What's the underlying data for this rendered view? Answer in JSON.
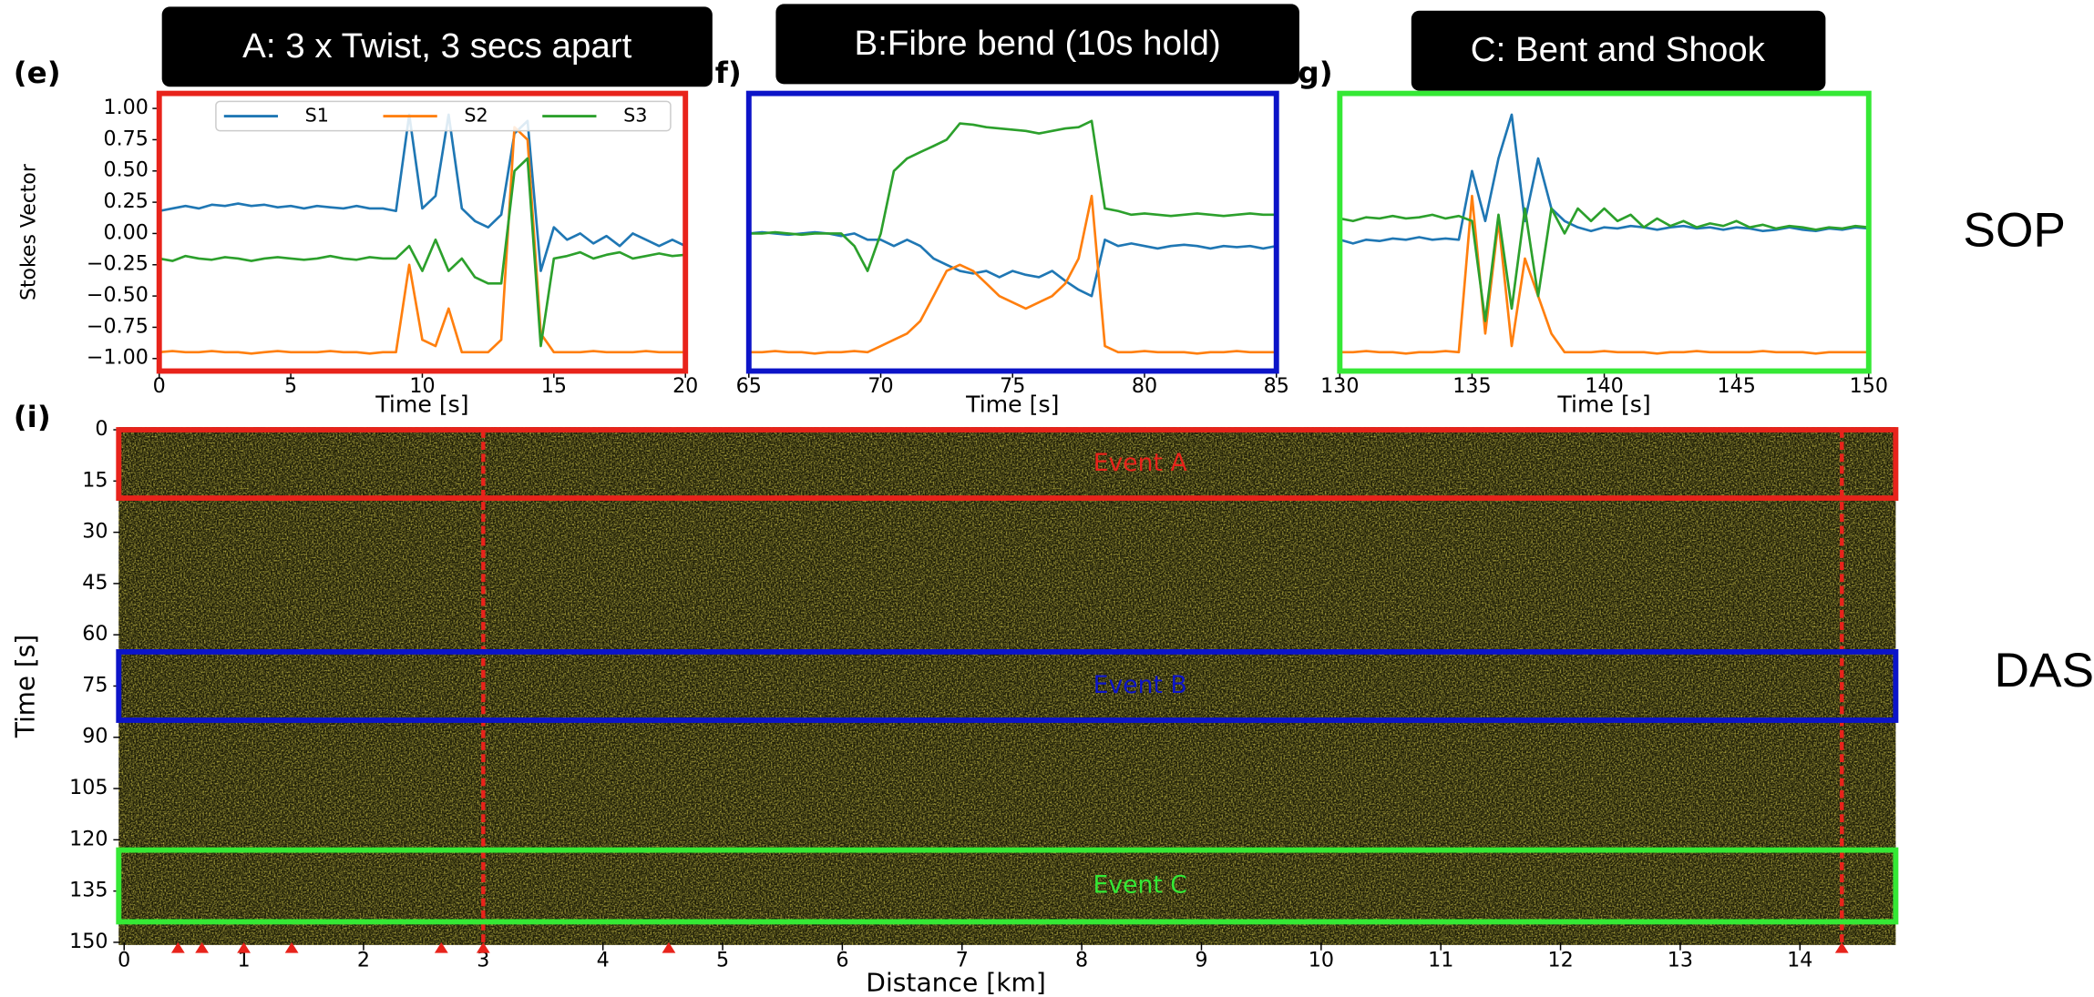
{
  "headers": [
    "A: 3 x Twist, 3 secs apart",
    "B:Fibre bend (10s hold)",
    "C: Bent and Shook"
  ],
  "side_labels": [
    "SOP",
    "DAS"
  ],
  "chart_data": [
    {
      "type": "line",
      "panel_label": "(e)",
      "xlabel": "Time [s]",
      "ylabel": "Stokes Vector",
      "frame_color": "#e8231b",
      "legend": "upper center",
      "x": [
        0,
        0.5,
        1,
        1.5,
        2,
        2.5,
        3,
        3.5,
        4,
        4.5,
        5,
        5.5,
        6,
        6.5,
        7,
        7.5,
        8,
        8.5,
        9,
        9.5,
        10,
        10.5,
        11,
        11.5,
        12,
        12.5,
        13,
        13.5,
        14,
        14.5,
        15,
        15.5,
        16,
        16.5,
        17,
        17.5,
        18,
        18.5,
        19,
        19.5,
        20
      ],
      "xlim": [
        0,
        20
      ],
      "xticks": [
        0,
        5,
        10,
        15,
        20
      ],
      "ylim": [
        -1.1,
        1.12
      ],
      "yticks": [
        {
          "value": -1,
          "label": "−1.00"
        },
        {
          "value": -0.75,
          "label": "−0.75"
        },
        {
          "value": -0.5,
          "label": "−0.50"
        },
        {
          "value": -0.25,
          "label": "−0.25"
        },
        {
          "value": 0,
          "label": "0.00"
        },
        {
          "value": 0.25,
          "label": "0.25"
        },
        {
          "value": 0.5,
          "label": "0.50"
        },
        {
          "value": 0.75,
          "label": "0.75"
        },
        {
          "value": 1,
          "label": "1.00"
        }
      ],
      "series": [
        {
          "name": "S1",
          "color": "#1f77b4",
          "values": [
            0.18,
            0.2,
            0.22,
            0.2,
            0.23,
            0.22,
            0.24,
            0.22,
            0.23,
            0.21,
            0.22,
            0.2,
            0.22,
            0.21,
            0.2,
            0.22,
            0.2,
            0.2,
            0.18,
            0.95,
            0.2,
            0.3,
            0.95,
            0.2,
            0.1,
            0.05,
            0.15,
            0.8,
            0.9,
            -0.3,
            0.05,
            -0.05,
            0,
            -0.08,
            -0.02,
            -0.1,
            0,
            -0.05,
            -0.1,
            -0.05,
            -0.1
          ]
        },
        {
          "name": "S2",
          "color": "#ff7f0e",
          "values": [
            -0.95,
            -0.94,
            -0.95,
            -0.95,
            -0.94,
            -0.95,
            -0.95,
            -0.96,
            -0.95,
            -0.94,
            -0.95,
            -0.95,
            -0.95,
            -0.94,
            -0.95,
            -0.95,
            -0.96,
            -0.95,
            -0.95,
            -0.25,
            -0.85,
            -0.9,
            -0.6,
            -0.95,
            -0.95,
            -0.95,
            -0.85,
            0.85,
            0.75,
            -0.8,
            -0.95,
            -0.95,
            -0.95,
            -0.94,
            -0.95,
            -0.95,
            -0.95,
            -0.94,
            -0.95,
            -0.95,
            -0.95
          ]
        },
        {
          "name": "S3",
          "color": "#2ca02c",
          "values": [
            -0.2,
            -0.22,
            -0.18,
            -0.2,
            -0.21,
            -0.19,
            -0.2,
            -0.22,
            -0.2,
            -0.19,
            -0.2,
            -0.21,
            -0.2,
            -0.18,
            -0.2,
            -0.21,
            -0.19,
            -0.2,
            -0.2,
            -0.1,
            -0.3,
            -0.05,
            -0.3,
            -0.2,
            -0.35,
            -0.4,
            -0.4,
            0.5,
            0.6,
            -0.9,
            -0.2,
            -0.18,
            -0.15,
            -0.2,
            -0.17,
            -0.15,
            -0.2,
            -0.18,
            -0.16,
            -0.18,
            -0.17
          ]
        }
      ]
    },
    {
      "type": "line",
      "panel_label": "f)",
      "xlabel": "Time [s]",
      "frame_color": "#0c14c8",
      "x": [
        65,
        65.5,
        66,
        66.5,
        67,
        67.5,
        68,
        68.5,
        69,
        69.5,
        70,
        70.5,
        71,
        71.5,
        72,
        72.5,
        73,
        73.5,
        74,
        74.5,
        75,
        75.5,
        76,
        76.5,
        77,
        77.5,
        78,
        78.5,
        79,
        79.5,
        80,
        80.5,
        81,
        81.5,
        82,
        82.5,
        83,
        83.5,
        84,
        84.5,
        85
      ],
      "xlim": [
        65,
        85
      ],
      "xticks": [
        65,
        70,
        75,
        80,
        85
      ],
      "ylim": [
        -1.1,
        1.12
      ],
      "series": [
        {
          "color": "#1f77b4",
          "values": [
            0,
            0.01,
            0,
            -0.01,
            0,
            0.01,
            0,
            -0.02,
            0,
            -0.05,
            -0.05,
            -0.1,
            -0.05,
            -0.1,
            -0.2,
            -0.25,
            -0.3,
            -0.32,
            -0.3,
            -0.35,
            -0.3,
            -0.33,
            -0.35,
            -0.3,
            -0.38,
            -0.45,
            -0.5,
            -0.05,
            -0.1,
            -0.08,
            -0.1,
            -0.12,
            -0.1,
            -0.09,
            -0.1,
            -0.12,
            -0.1,
            -0.11,
            -0.1,
            -0.12,
            -0.1
          ]
        },
        {
          "color": "#ff7f0e",
          "values": [
            -0.95,
            -0.95,
            -0.94,
            -0.95,
            -0.95,
            -0.96,
            -0.95,
            -0.95,
            -0.94,
            -0.95,
            -0.9,
            -0.85,
            -0.8,
            -0.7,
            -0.5,
            -0.3,
            -0.25,
            -0.3,
            -0.4,
            -0.5,
            -0.55,
            -0.6,
            -0.55,
            -0.5,
            -0.4,
            -0.2,
            0.3,
            -0.9,
            -0.95,
            -0.95,
            -0.94,
            -0.95,
            -0.95,
            -0.95,
            -0.96,
            -0.95,
            -0.95,
            -0.94,
            -0.95,
            -0.95,
            -0.95
          ]
        },
        {
          "color": "#2ca02c",
          "values": [
            0,
            0,
            0.01,
            0,
            -0.01,
            0,
            0,
            0,
            -0.1,
            -0.3,
            0,
            0.5,
            0.6,
            0.65,
            0.7,
            0.75,
            0.88,
            0.87,
            0.85,
            0.84,
            0.83,
            0.82,
            0.8,
            0.82,
            0.84,
            0.85,
            0.9,
            0.2,
            0.18,
            0.15,
            0.16,
            0.15,
            0.14,
            0.15,
            0.16,
            0.15,
            0.14,
            0.15,
            0.16,
            0.15,
            0.15
          ]
        }
      ]
    },
    {
      "type": "line",
      "panel_label": "g)",
      "xlabel": "Time [s]",
      "frame_color": "#35e835",
      "x": [
        130,
        130.5,
        131,
        131.5,
        132,
        132.5,
        133,
        133.5,
        134,
        134.5,
        135,
        135.5,
        136,
        136.5,
        137,
        137.5,
        138,
        138.5,
        139,
        139.5,
        140,
        140.5,
        141,
        141.5,
        142,
        142.5,
        143,
        143.5,
        144,
        144.5,
        145,
        145.5,
        146,
        146.5,
        147,
        147.5,
        148,
        148.5,
        149,
        149.5,
        150
      ],
      "xlim": [
        130,
        150
      ],
      "xticks": [
        130,
        135,
        140,
        145,
        150
      ],
      "ylim": [
        -1.1,
        1.12
      ],
      "series": [
        {
          "color": "#1f77b4",
          "values": [
            -0.05,
            -0.08,
            -0.05,
            -0.06,
            -0.04,
            -0.05,
            -0.03,
            -0.05,
            -0.04,
            -0.05,
            0.5,
            0.1,
            0.6,
            0.95,
            0.1,
            0.6,
            0.2,
            0.1,
            0.05,
            0.02,
            0.05,
            0.04,
            0.06,
            0.05,
            0.03,
            0.05,
            0.06,
            0.04,
            0.05,
            0.03,
            0.05,
            0.04,
            0.02,
            0.03,
            0.05,
            0.03,
            0.02,
            0.04,
            0.03,
            0.05,
            0.04
          ]
        },
        {
          "color": "#ff7f0e",
          "values": [
            -0.95,
            -0.95,
            -0.94,
            -0.95,
            -0.95,
            -0.96,
            -0.95,
            -0.95,
            -0.94,
            -0.95,
            0.3,
            -0.8,
            0.1,
            -0.9,
            -0.2,
            -0.5,
            -0.8,
            -0.95,
            -0.95,
            -0.95,
            -0.94,
            -0.95,
            -0.95,
            -0.95,
            -0.96,
            -0.95,
            -0.95,
            -0.94,
            -0.95,
            -0.95,
            -0.95,
            -0.95,
            -0.94,
            -0.95,
            -0.95,
            -0.95,
            -0.96,
            -0.95,
            -0.95,
            -0.95,
            -0.95
          ]
        },
        {
          "color": "#2ca02c",
          "values": [
            0.12,
            0.1,
            0.13,
            0.12,
            0.14,
            0.12,
            0.13,
            0.15,
            0.12,
            0.14,
            0.1,
            -0.7,
            0.15,
            -0.6,
            0.2,
            -0.5,
            0.2,
            0,
            0.2,
            0.1,
            0.2,
            0.1,
            0.15,
            0.05,
            0.12,
            0.06,
            0.1,
            0.05,
            0.08,
            0.06,
            0.1,
            0.05,
            0.07,
            0.04,
            0.06,
            0.05,
            0.03,
            0.05,
            0.04,
            0.06,
            0.05
          ]
        }
      ]
    },
    {
      "type": "waterfall",
      "panel_label": "(i)",
      "xlabel": "Distance [km]",
      "ylabel": "Time [s]",
      "y_inverted": true,
      "xlim": [
        0,
        14.8
      ],
      "xticks": [
        0,
        1,
        2,
        3,
        4,
        5,
        6,
        7,
        8,
        9,
        10,
        11,
        12,
        13,
        14
      ],
      "ylim": [
        0,
        150
      ],
      "yticks": [
        0,
        15,
        30,
        45,
        60,
        75,
        90,
        105,
        120,
        135,
        150
      ],
      "events": [
        {
          "label": "Event A",
          "color": "#e8231b",
          "range": [
            0,
            20
          ]
        },
        {
          "label": "Event B",
          "color": "#0c14c8",
          "range": [
            65,
            85
          ]
        },
        {
          "label": "Event C",
          "color": "#35e835",
          "range": [
            123,
            144
          ]
        }
      ],
      "marker_color": "#e8231b",
      "markers": [
        0.45,
        0.65,
        1,
        1.4,
        2.65,
        3,
        4.55,
        14.35
      ],
      "lines": [
        3,
        14.35
      ]
    }
  ]
}
